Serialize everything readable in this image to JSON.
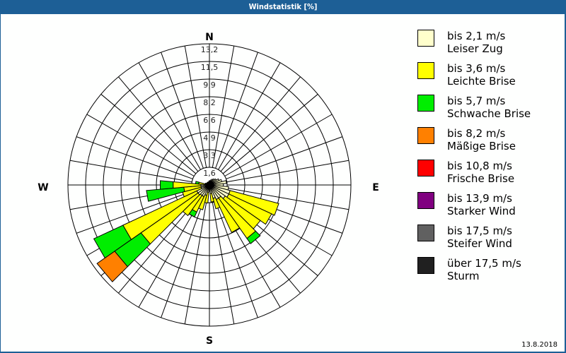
{
  "window": {
    "title": "Windstatistik [%]"
  },
  "footer": {
    "date": "13.8.2018"
  },
  "compass": {
    "N": "N",
    "E": "E",
    "S": "S",
    "W": "W"
  },
  "legend": [
    {
      "range": "bis 2,1 m/s",
      "name": "Leiser Zug",
      "color": "#ffffcc"
    },
    {
      "range": "bis 3,6 m/s",
      "name": "Leichte Brise",
      "color": "#ffff00"
    },
    {
      "range": "bis 5,7 m/s",
      "name": "Schwache Brise",
      "color": "#00ee00"
    },
    {
      "range": "bis 8,2 m/s",
      "name": "Mäßige Brise",
      "color": "#ff8000"
    },
    {
      "range": "bis 10,8 m/s",
      "name": "Frische Brise",
      "color": "#ff0000"
    },
    {
      "range": "bis 13,9 m/s",
      "name": "Starker Wind",
      "color": "#800080"
    },
    {
      "range": "bis 17,5 m/s",
      "name": "Steifer Wind",
      "color": "#606060"
    },
    {
      "range": "über 17,5 m/s",
      "name": "Sturm",
      "color": "#202020"
    }
  ],
  "chart_data": {
    "type": "windrose",
    "title": "Windstatistik [%]",
    "rings": [
      "1,6",
      "3,3",
      "4,9",
      "6,6",
      "8,2",
      "9,9",
      "11,5",
      "13,2"
    ],
    "rmax": 13.2,
    "sector_width_deg": 10,
    "classes": [
      "bis 2,1 m/s",
      "bis 3,6 m/s",
      "bis 5,7 m/s",
      "bis 8,2 m/s",
      "bis 10,8 m/s",
      "bis 13,9 m/s",
      "bis 17,5 m/s",
      "über 17,5 m/s"
    ],
    "sectors": [
      {
        "dir": 0,
        "values": [
          0.4,
          0,
          0,
          0
        ]
      },
      {
        "dir": 10,
        "values": [
          0.4,
          0,
          0,
          0
        ]
      },
      {
        "dir": 20,
        "values": [
          0.5,
          0,
          0,
          0
        ]
      },
      {
        "dir": 30,
        "values": [
          0.6,
          0,
          0,
          0
        ]
      },
      {
        "dir": 40,
        "values": [
          0.7,
          0,
          0,
          0
        ]
      },
      {
        "dir": 50,
        "values": [
          0.8,
          0,
          0,
          0
        ]
      },
      {
        "dir": 60,
        "values": [
          1.0,
          0,
          0,
          0
        ]
      },
      {
        "dir": 70,
        "values": [
          1.2,
          0,
          0,
          0
        ]
      },
      {
        "dir": 80,
        "values": [
          1.6,
          0,
          0,
          0
        ]
      },
      {
        "dir": 90,
        "values": [
          1.3,
          0,
          0,
          0
        ]
      },
      {
        "dir": 100,
        "values": [
          1.8,
          0,
          0,
          0
        ]
      },
      {
        "dir": 110,
        "values": [
          2.0,
          4.7,
          0,
          0
        ]
      },
      {
        "dir": 120,
        "values": [
          2.0,
          4.4,
          0,
          0
        ]
      },
      {
        "dir": 130,
        "values": [
          1.8,
          4.0,
          0,
          0
        ]
      },
      {
        "dir": 140,
        "values": [
          1.5,
          4.6,
          0.6,
          0
        ]
      },
      {
        "dir": 150,
        "values": [
          1.5,
          3.4,
          0,
          0
        ]
      },
      {
        "dir": 160,
        "values": [
          1.3,
          1.0,
          0,
          0
        ]
      },
      {
        "dir": 170,
        "values": [
          0.8,
          0.8,
          0,
          0
        ]
      },
      {
        "dir": 180,
        "values": [
          0.6,
          0,
          0,
          0
        ]
      },
      {
        "dir": 190,
        "values": [
          0.7,
          1.0,
          0,
          0
        ]
      },
      {
        "dir": 200,
        "values": [
          1.0,
          1.4,
          0,
          0
        ]
      },
      {
        "dir": 210,
        "values": [
          1.2,
          1.6,
          0.5,
          0
        ]
      },
      {
        "dir": 220,
        "values": [
          1.2,
          2.3,
          0,
          0
        ]
      },
      {
        "dir": 230,
        "values": [
          1.3,
          6.5,
          3.0,
          2.0
        ]
      },
      {
        "dir": 240,
        "values": [
          1.3,
          7.6,
          3.0,
          0
        ]
      },
      {
        "dir": 250,
        "values": [
          0.8,
          1.8,
          0,
          0
        ]
      },
      {
        "dir": 260,
        "values": [
          0.8,
          1.6,
          3.5,
          0
        ]
      },
      {
        "dir": 270,
        "values": [
          0.8,
          2.6,
          1.2,
          0
        ]
      },
      {
        "dir": 280,
        "values": [
          0.4,
          0.6,
          0.3,
          0
        ]
      },
      {
        "dir": 290,
        "values": [
          0.4,
          0,
          0,
          0
        ]
      },
      {
        "dir": 300,
        "values": [
          0.3,
          0,
          0,
          0
        ]
      },
      {
        "dir": 310,
        "values": [
          0.3,
          0,
          0,
          0
        ]
      },
      {
        "dir": 320,
        "values": [
          0.3,
          0,
          0,
          0
        ]
      },
      {
        "dir": 330,
        "values": [
          0.3,
          0,
          0,
          0
        ]
      },
      {
        "dir": 340,
        "values": [
          0.3,
          0,
          0,
          0
        ]
      },
      {
        "dir": 350,
        "values": [
          0.3,
          0,
          0,
          0
        ]
      }
    ],
    "legend_position": "right"
  }
}
